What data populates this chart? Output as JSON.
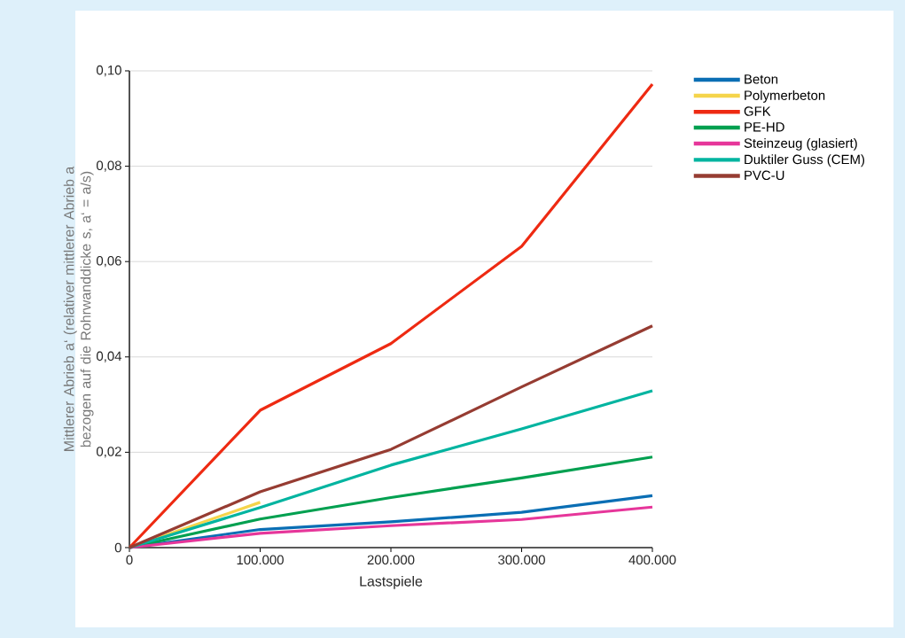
{
  "chart_data": {
    "type": "line",
    "xlabel": "Lastspiele",
    "ylabel": "Mittlerer Abrieb a‘ (relativer mittlerer Abrieb a bezogen auf die Rohrwanddicke s, a‘ = a/s)",
    "x": [
      0,
      100000,
      200000,
      300000,
      400000
    ],
    "xlim": [
      0,
      400000
    ],
    "xticks": [
      0,
      {
        "value": 100000,
        "label": "100.000"
      },
      {
        "value": 200000,
        "label": "200.000"
      },
      {
        "value": 300000,
        "label": "300.000"
      },
      {
        "value": 400000,
        "label": "400.000"
      }
    ],
    "ylim": [
      0,
      0.1
    ],
    "yticks": [
      0,
      {
        "value": 0.02,
        "label": "0,02"
      },
      {
        "value": 0.04,
        "label": "0,04"
      },
      {
        "value": 0.06,
        "label": "0,06"
      },
      {
        "value": 0.08,
        "label": "0,08"
      },
      {
        "value": 0.1,
        "label": "0,10"
      }
    ],
    "grid": "y",
    "legend": "right",
    "line_style": "solid",
    "marker": "none",
    "series": [
      {
        "name": "Beton",
        "color": "#0a6eb4",
        "values": [
          0,
          0.0038,
          0.0054,
          0.0074,
          0.0109
        ]
      },
      {
        "name": "Polymerbeton",
        "color": "#f5d44b",
        "values": [
          0,
          0.0095,
          null,
          null,
          null
        ]
      },
      {
        "name": "GFK",
        "color": "#ee2a12",
        "values": [
          0,
          0.0288,
          0.0428,
          0.0632,
          0.0972
        ]
      },
      {
        "name": "PE-HD",
        "color": "#00a050",
        "values": [
          0,
          0.006,
          0.0105,
          0.0146,
          0.019
        ]
      },
      {
        "name": "Steinzeug (glasiert)",
        "color": "#e6369a",
        "values": [
          0,
          0.003,
          0.0046,
          0.0059,
          0.0085
        ]
      },
      {
        "name": "Duktiler Guss (CEM)",
        "color": "#00b4a0",
        "values": [
          0,
          0.0084,
          0.0173,
          0.0249,
          0.0329
        ]
      },
      {
        "name": "PVC-U",
        "color": "#963c32",
        "values": [
          0,
          0.0117,
          0.0206,
          0.0337,
          0.0465
        ]
      }
    ]
  }
}
